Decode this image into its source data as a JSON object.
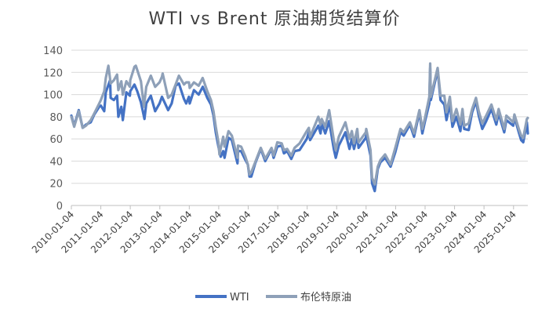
{
  "chart_data": {
    "type": "line",
    "title": "WTI vs Brent 原油期货结算价",
    "xlabel": "",
    "ylabel": "",
    "ylim": [
      0,
      140
    ],
    "yticks": [
      0,
      20,
      40,
      60,
      80,
      100,
      120,
      140
    ],
    "xticks": [
      "2010-01-04",
      "2011-01-04",
      "2012-01-04",
      "2013-01-04",
      "2014-01-04",
      "2015-01-04",
      "2016-01-04",
      "2017-01-04",
      "2018-01-04",
      "2019-01-04",
      "2020-01-04",
      "2021-01-04",
      "2022-01-04",
      "2023-01-04",
      "2024-01-04",
      "2025-01-04"
    ],
    "x_start": "2010-01-04",
    "x_end": "2025-06-30",
    "grid": true,
    "legend_position": "bottom",
    "colors": {
      "wti": "#4472C4",
      "brent": "#8EA0B8",
      "grid": "#D9D9D9",
      "axis": "#BFBFBF"
    },
    "series": [
      {
        "name": "WTI",
        "color": "#4472C4",
        "points": [
          [
            "2010-01-04",
            81
          ],
          [
            "2010-02-08",
            72
          ],
          [
            "2010-04-05",
            86
          ],
          [
            "2010-05-24",
            70
          ],
          [
            "2010-07-05",
            73
          ],
          [
            "2010-09-01",
            75
          ],
          [
            "2010-10-15",
            82
          ],
          [
            "2010-12-15",
            89
          ],
          [
            "2011-01-04",
            90
          ],
          [
            "2011-02-15",
            85
          ],
          [
            "2011-03-07",
            102
          ],
          [
            "2011-04-29",
            113
          ],
          [
            "2011-05-06",
            97
          ],
          [
            "2011-06-15",
            95
          ],
          [
            "2011-07-25",
            99
          ],
          [
            "2011-08-09",
            80
          ],
          [
            "2011-09-15",
            89
          ],
          [
            "2011-10-04",
            77
          ],
          [
            "2011-11-16",
            102
          ],
          [
            "2011-12-30",
            99
          ],
          [
            "2012-01-04",
            103
          ],
          [
            "2012-02-24",
            109
          ],
          [
            "2012-03-30",
            103
          ],
          [
            "2012-05-15",
            93
          ],
          [
            "2012-06-28",
            78
          ],
          [
            "2012-07-20",
            92
          ],
          [
            "2012-09-14",
            99
          ],
          [
            "2012-11-07",
            85
          ],
          [
            "2012-12-31",
            92
          ],
          [
            "2013-01-30",
            98
          ],
          [
            "2013-04-17",
            86
          ],
          [
            "2013-05-31",
            92
          ],
          [
            "2013-07-19",
            108
          ],
          [
            "2013-08-28",
            110
          ],
          [
            "2013-10-31",
            96
          ],
          [
            "2013-11-27",
            92
          ],
          [
            "2013-12-31",
            98
          ],
          [
            "2014-01-09",
            92
          ],
          [
            "2014-03-03",
            104
          ],
          [
            "2014-04-30",
            100
          ],
          [
            "2014-06-20",
            107
          ],
          [
            "2014-08-15",
            97
          ],
          [
            "2014-09-30",
            91
          ],
          [
            "2014-10-31",
            81
          ],
          [
            "2014-11-28",
            66
          ],
          [
            "2014-12-31",
            53
          ],
          [
            "2015-01-28",
            44
          ],
          [
            "2015-02-28",
            49
          ],
          [
            "2015-03-17",
            43
          ],
          [
            "2015-05-06",
            61
          ],
          [
            "2015-06-15",
            59
          ],
          [
            "2015-08-24",
            38
          ],
          [
            "2015-08-31",
            49
          ],
          [
            "2015-10-09",
            49
          ],
          [
            "2015-11-30",
            41
          ],
          [
            "2015-12-31",
            37
          ],
          [
            "2016-01-20",
            26
          ],
          [
            "2016-02-11",
            26
          ],
          [
            "2016-03-31",
            38
          ],
          [
            "2016-06-08",
            51
          ],
          [
            "2016-08-02",
            40
          ],
          [
            "2016-10-19",
            51
          ],
          [
            "2016-11-14",
            43
          ],
          [
            "2016-12-30",
            53
          ],
          [
            "2017-02-22",
            54
          ],
          [
            "2017-03-22",
            47
          ],
          [
            "2017-05-01",
            49
          ],
          [
            "2017-06-21",
            42
          ],
          [
            "2017-08-01",
            49
          ],
          [
            "2017-10-02",
            50
          ],
          [
            "2017-12-29",
            60
          ],
          [
            "2018-01-25",
            66
          ],
          [
            "2018-02-09",
            59
          ],
          [
            "2018-05-22",
            72
          ],
          [
            "2018-06-18",
            65
          ],
          [
            "2018-07-03",
            74
          ],
          [
            "2018-08-16",
            65
          ],
          [
            "2018-10-03",
            76
          ],
          [
            "2018-11-30",
            51
          ],
          [
            "2018-12-24",
            43
          ],
          [
            "2019-01-31",
            54
          ],
          [
            "2019-04-23",
            66
          ],
          [
            "2019-06-12",
            51
          ],
          [
            "2019-07-11",
            60
          ],
          [
            "2019-08-07",
            51
          ],
          [
            "2019-09-16",
            63
          ],
          [
            "2019-10-03",
            52
          ],
          [
            "2019-12-31",
            61
          ],
          [
            "2020-01-06",
            63
          ],
          [
            "2020-02-28",
            45
          ],
          [
            "2020-03-18",
            20
          ],
          [
            "2020-04-20",
            13
          ],
          [
            "2020-05-28",
            33
          ],
          [
            "2020-06-30",
            39
          ],
          [
            "2020-08-26",
            43
          ],
          [
            "2020-11-02",
            35
          ],
          [
            "2020-12-31",
            48
          ],
          [
            "2021-03-05",
            66
          ],
          [
            "2021-04-15",
            63
          ],
          [
            "2021-06-30",
            73
          ],
          [
            "2021-08-20",
            62
          ],
          [
            "2021-10-26",
            84
          ],
          [
            "2021-12-01",
            65
          ],
          [
            "2021-12-31",
            75
          ],
          [
            "2022-02-25",
            92
          ],
          [
            "2022-03-08",
            124
          ],
          [
            "2022-03-16",
            95
          ],
          [
            "2022-06-08",
            122
          ],
          [
            "2022-07-14",
            95
          ],
          [
            "2022-08-30",
            91
          ],
          [
            "2022-09-26",
            77
          ],
          [
            "2022-11-07",
            92
          ],
          [
            "2022-12-09",
            71
          ],
          [
            "2023-01-27",
            80
          ],
          [
            "2023-03-17",
            67
          ],
          [
            "2023-04-12",
            83
          ],
          [
            "2023-05-04",
            69
          ],
          [
            "2023-06-28",
            68
          ],
          [
            "2023-08-10",
            84
          ],
          [
            "2023-09-27",
            94
          ],
          [
            "2023-10-31",
            81
          ],
          [
            "2023-12-13",
            69
          ],
          [
            "2024-01-31",
            76
          ],
          [
            "2024-04-05",
            87
          ],
          [
            "2024-06-04",
            73
          ],
          [
            "2024-07-03",
            83
          ],
          [
            "2024-09-10",
            66
          ],
          [
            "2024-10-07",
            77
          ],
          [
            "2024-12-31",
            72
          ],
          [
            "2025-01-15",
            80
          ],
          [
            "2025-03-10",
            66
          ],
          [
            "2025-04-08",
            59
          ],
          [
            "2025-05-05",
            57
          ],
          [
            "2025-06-18",
            75
          ],
          [
            "2025-06-30",
            65
          ]
        ]
      },
      {
        "name": "布伦特原油",
        "color": "#8EA0B8",
        "points": [
          [
            "2010-01-04",
            80
          ],
          [
            "2010-02-08",
            71
          ],
          [
            "2010-04-05",
            85
          ],
          [
            "2010-05-24",
            70
          ],
          [
            "2010-07-05",
            72
          ],
          [
            "2010-09-01",
            77
          ],
          [
            "2010-10-15",
            83
          ],
          [
            "2010-12-15",
            92
          ],
          [
            "2011-01-04",
            95
          ],
          [
            "2011-02-15",
            103
          ],
          [
            "2011-03-07",
            115
          ],
          [
            "2011-04-08",
            126
          ],
          [
            "2011-05-06",
            110
          ],
          [
            "2011-06-15",
            113
          ],
          [
            "2011-07-25",
            118
          ],
          [
            "2011-08-09",
            104
          ],
          [
            "2011-09-15",
            112
          ],
          [
            "2011-10-04",
            100
          ],
          [
            "2011-11-16",
            112
          ],
          [
            "2011-12-30",
            107
          ],
          [
            "2012-01-04",
            113
          ],
          [
            "2012-02-24",
            125
          ],
          [
            "2012-03-13",
            126
          ],
          [
            "2012-05-15",
            112
          ],
          [
            "2012-06-21",
            89
          ],
          [
            "2012-07-20",
            107
          ],
          [
            "2012-09-14",
            117
          ],
          [
            "2012-11-07",
            107
          ],
          [
            "2012-12-31",
            111
          ],
          [
            "2013-01-30",
            116
          ],
          [
            "2013-02-08",
            119
          ],
          [
            "2013-04-17",
            97
          ],
          [
            "2013-05-31",
            100
          ],
          [
            "2013-07-19",
            109
          ],
          [
            "2013-08-28",
            117
          ],
          [
            "2013-10-31",
            109
          ],
          [
            "2013-11-27",
            111
          ],
          [
            "2013-12-31",
            111
          ],
          [
            "2014-01-09",
            106
          ],
          [
            "2014-03-03",
            111
          ],
          [
            "2014-04-30",
            108
          ],
          [
            "2014-06-19",
            115
          ],
          [
            "2014-08-15",
            103
          ],
          [
            "2014-09-30",
            95
          ],
          [
            "2014-10-31",
            85
          ],
          [
            "2014-11-28",
            71
          ],
          [
            "2014-12-31",
            57
          ],
          [
            "2015-01-13",
            46
          ],
          [
            "2015-02-28",
            62
          ],
          [
            "2015-03-17",
            53
          ],
          [
            "2015-05-06",
            67
          ],
          [
            "2015-06-15",
            63
          ],
          [
            "2015-08-24",
            43
          ],
          [
            "2015-08-31",
            54
          ],
          [
            "2015-10-09",
            53
          ],
          [
            "2015-11-30",
            44
          ],
          [
            "2015-12-31",
            37
          ],
          [
            "2016-01-20",
            28
          ],
          [
            "2016-02-11",
            30
          ],
          [
            "2016-03-31",
            39
          ],
          [
            "2016-06-08",
            52
          ],
          [
            "2016-08-02",
            42
          ],
          [
            "2016-10-19",
            52
          ],
          [
            "2016-11-14",
            45
          ],
          [
            "2016-12-30",
            57
          ],
          [
            "2017-02-22",
            56
          ],
          [
            "2017-03-22",
            50
          ],
          [
            "2017-05-01",
            51
          ],
          [
            "2017-06-21",
            45
          ],
          [
            "2017-08-01",
            52
          ],
          [
            "2017-10-02",
            56
          ],
          [
            "2017-12-29",
            67
          ],
          [
            "2018-01-25",
            70
          ],
          [
            "2018-02-09",
            62
          ],
          [
            "2018-05-22",
            80
          ],
          [
            "2018-06-18",
            73
          ],
          [
            "2018-07-03",
            78
          ],
          [
            "2018-08-16",
            71
          ],
          [
            "2018-10-03",
            86
          ],
          [
            "2018-11-30",
            59
          ],
          [
            "2018-12-24",
            50
          ],
          [
            "2019-01-31",
            62
          ],
          [
            "2019-04-23",
            75
          ],
          [
            "2019-06-12",
            60
          ],
          [
            "2019-07-11",
            67
          ],
          [
            "2019-08-07",
            56
          ],
          [
            "2019-09-16",
            69
          ],
          [
            "2019-10-03",
            57
          ],
          [
            "2019-12-31",
            66
          ],
          [
            "2020-01-06",
            69
          ],
          [
            "2020-02-28",
            50
          ],
          [
            "2020-03-18",
            25
          ],
          [
            "2020-04-21",
            19
          ],
          [
            "2020-05-28",
            35
          ],
          [
            "2020-06-30",
            41
          ],
          [
            "2020-08-26",
            46
          ],
          [
            "2020-11-02",
            37
          ],
          [
            "2020-12-31",
            52
          ],
          [
            "2021-03-05",
            69
          ],
          [
            "2021-04-15",
            66
          ],
          [
            "2021-06-30",
            75
          ],
          [
            "2021-08-20",
            65
          ],
          [
            "2021-10-26",
            86
          ],
          [
            "2021-12-01",
            69
          ],
          [
            "2021-12-31",
            78
          ],
          [
            "2022-02-25",
            98
          ],
          [
            "2022-03-08",
            128
          ],
          [
            "2022-03-16",
            98
          ],
          [
            "2022-06-08",
            124
          ],
          [
            "2022-07-14",
            99
          ],
          [
            "2022-08-30",
            99
          ],
          [
            "2022-09-26",
            84
          ],
          [
            "2022-11-07",
            98
          ],
          [
            "2022-12-09",
            76
          ],
          [
            "2023-01-27",
            87
          ],
          [
            "2023-03-17",
            73
          ],
          [
            "2023-04-12",
            87
          ],
          [
            "2023-05-04",
            72
          ],
          [
            "2023-06-28",
            74
          ],
          [
            "2023-08-10",
            87
          ],
          [
            "2023-09-27",
            97
          ],
          [
            "2023-10-31",
            85
          ],
          [
            "2023-12-13",
            74
          ],
          [
            "2024-01-31",
            81
          ],
          [
            "2024-04-05",
            91
          ],
          [
            "2024-06-04",
            77
          ],
          [
            "2024-07-03",
            87
          ],
          [
            "2024-09-10",
            69
          ],
          [
            "2024-10-07",
            81
          ],
          [
            "2024-12-31",
            75
          ],
          [
            "2025-01-15",
            82
          ],
          [
            "2025-03-10",
            69
          ],
          [
            "2025-04-08",
            63
          ],
          [
            "2025-05-05",
            61
          ],
          [
            "2025-06-18",
            78
          ],
          [
            "2025-06-30",
            79
          ]
        ]
      }
    ]
  }
}
